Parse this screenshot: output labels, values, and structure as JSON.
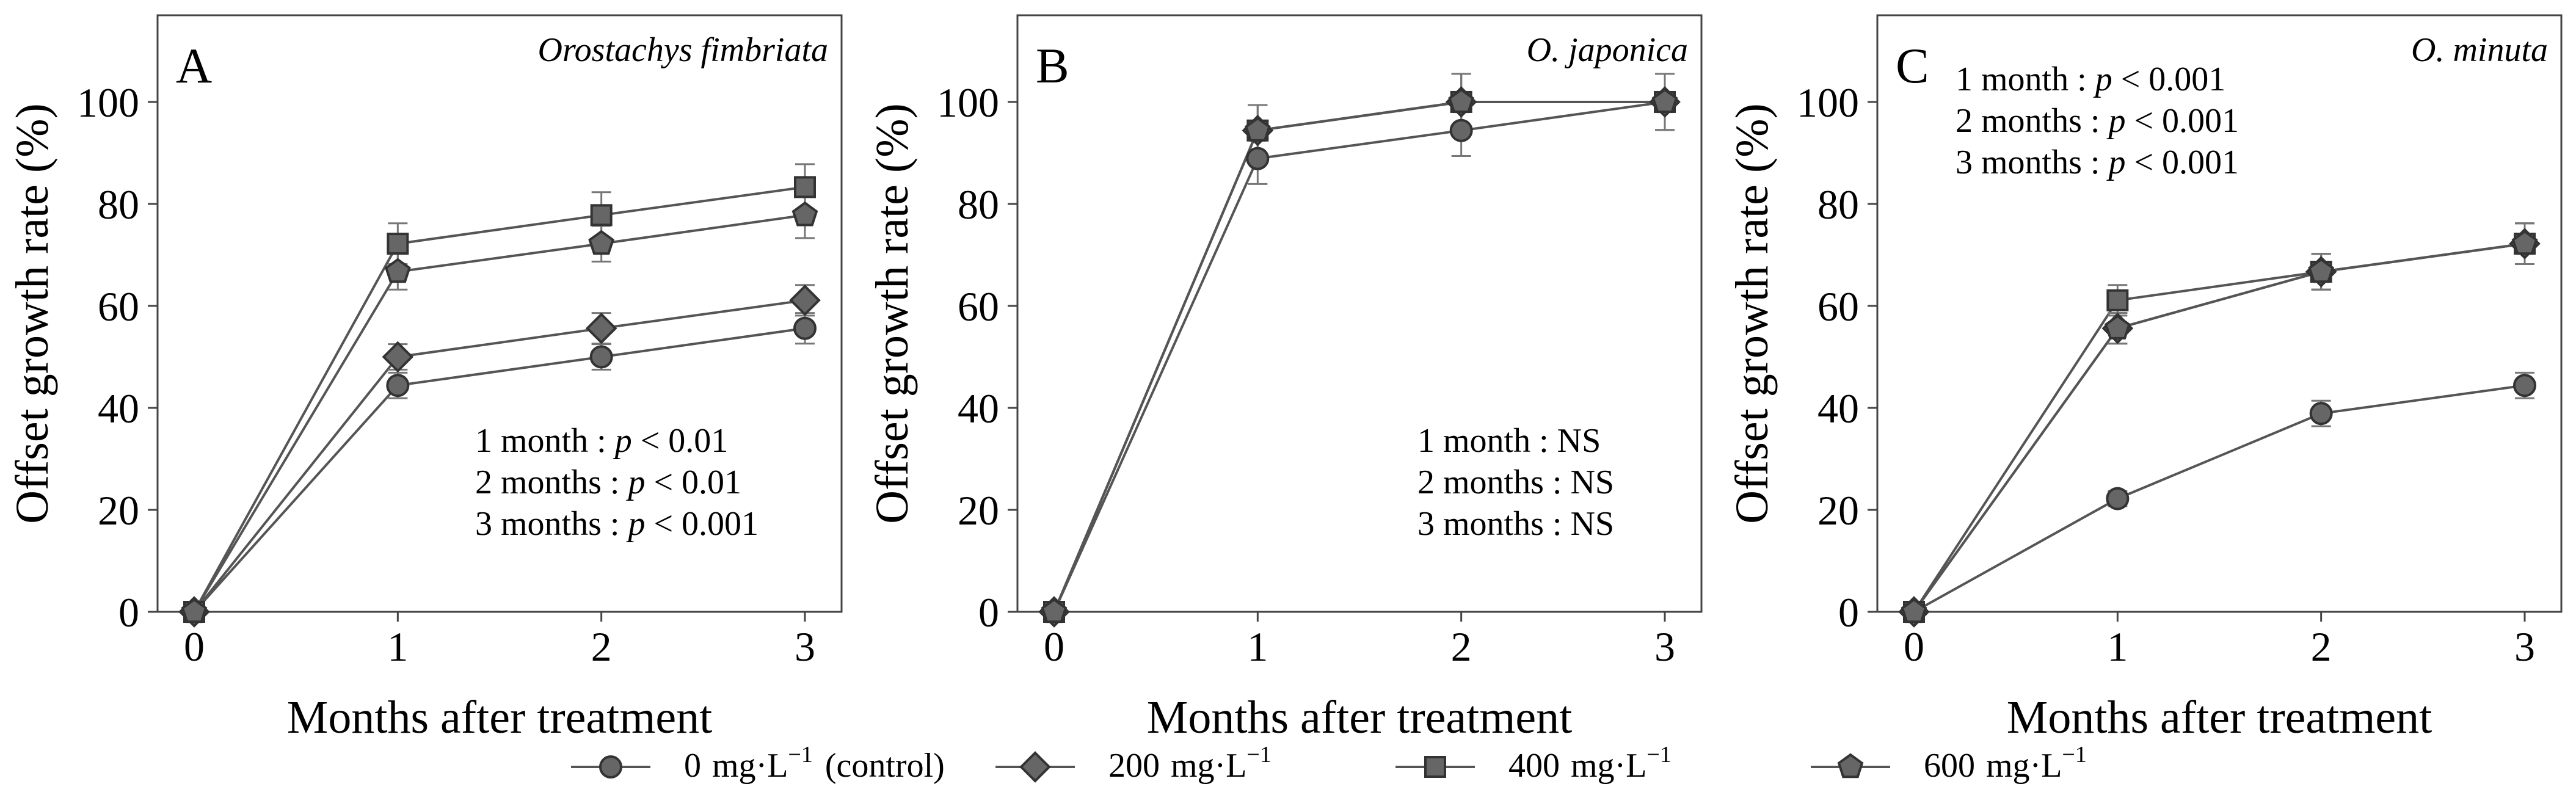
{
  "chart_data": [
    {
      "type": "line",
      "panel": "A",
      "species": "Orostachys fimbriata",
      "x": [
        0,
        1,
        2,
        3
      ],
      "xlabel": "Months after treatment",
      "ylabel": "Offset growth rate (%)",
      "ylim": [
        0,
        117
      ],
      "yticks": [
        0,
        20,
        40,
        60,
        80,
        100
      ],
      "xticks": [
        0,
        1,
        2,
        3
      ],
      "annotations": [
        {
          "prefix": "1 month : ",
          "p": "p",
          "suffix": " < 0.01"
        },
        {
          "prefix": "2 months : ",
          "p": "p",
          "suffix": " < 0.01"
        },
        {
          "prefix": "3 months : ",
          "p": "p",
          "suffix": " < 0.001"
        }
      ],
      "series": [
        {
          "name": "0 mg·L−1 (control)",
          "marker": "circle",
          "values": [
            0,
            44.4,
            50.0,
            55.6
          ],
          "errors": [
            0,
            2.5,
            2.5,
            3.0
          ]
        },
        {
          "name": "200 mg·L−1",
          "marker": "diamond",
          "values": [
            0,
            50.0,
            55.6,
            61.1
          ],
          "errors": [
            0,
            2.5,
            3.0,
            3.0
          ]
        },
        {
          "name": "400 mg·L−1",
          "marker": "square",
          "values": [
            0,
            72.2,
            77.8,
            83.3
          ],
          "errors": [
            0,
            4.0,
            4.5,
            4.5
          ]
        },
        {
          "name": "600 mg·L−1",
          "marker": "pentagon",
          "values": [
            0,
            66.7,
            72.2,
            77.8
          ],
          "errors": [
            0,
            3.5,
            3.5,
            4.5
          ]
        }
      ]
    },
    {
      "type": "line",
      "panel": "B",
      "species": "O. japonica",
      "x": [
        0,
        1,
        2,
        3
      ],
      "xlabel": "Months after treatment",
      "ylabel": "Offset growth rate (%)",
      "ylim": [
        0,
        117
      ],
      "yticks": [
        0,
        20,
        40,
        60,
        80,
        100
      ],
      "xticks": [
        0,
        1,
        2,
        3
      ],
      "annotations": [
        {
          "prefix": "1 month : NS",
          "p": "",
          "suffix": ""
        },
        {
          "prefix": "2 months : NS",
          "p": "",
          "suffix": ""
        },
        {
          "prefix": "3 months : NS",
          "p": "",
          "suffix": ""
        }
      ],
      "series": [
        {
          "name": "0 mg·L−1 (control)",
          "marker": "circle",
          "values": [
            0,
            88.9,
            94.4,
            100.0
          ],
          "errors": [
            0,
            5.0,
            5.0,
            5.5
          ]
        },
        {
          "name": "200 mg·L−1",
          "marker": "diamond",
          "values": [
            0,
            94.4,
            100.0,
            100.0
          ],
          "errors": [
            0,
            5.0,
            5.5,
            5.5
          ]
        },
        {
          "name": "400 mg·L−1",
          "marker": "square",
          "values": [
            0,
            94.4,
            100.0,
            100.0
          ],
          "errors": [
            0,
            5.0,
            5.5,
            5.5
          ]
        },
        {
          "name": "600 mg·L−1",
          "marker": "pentagon",
          "values": [
            0,
            94.4,
            100.0,
            100.0
          ],
          "errors": [
            0,
            5.0,
            5.5,
            5.5
          ]
        }
      ]
    },
    {
      "type": "line",
      "panel": "C",
      "species": "O. minuta",
      "x": [
        0,
        1,
        2,
        3
      ],
      "xlabel": "Months after treatment",
      "ylabel": "Offset growth rate (%)",
      "ylim": [
        0,
        117
      ],
      "yticks": [
        0,
        20,
        40,
        60,
        80,
        100
      ],
      "xticks": [
        0,
        1,
        2,
        3
      ],
      "annotations": [
        {
          "prefix": "1 month : ",
          "p": "p",
          "suffix": " < 0.001"
        },
        {
          "prefix": "2 months : ",
          "p": "p",
          "suffix": " < 0.001"
        },
        {
          "prefix": "3 months : ",
          "p": "p",
          "suffix": " < 0.001"
        }
      ],
      "series": [
        {
          "name": "0 mg·L−1 (control)",
          "marker": "circle",
          "values": [
            0,
            22.2,
            38.9,
            44.4
          ],
          "errors": [
            0,
            1.5,
            2.5,
            2.5
          ]
        },
        {
          "name": "200 mg·L−1",
          "marker": "diamond",
          "values": [
            0,
            55.6,
            66.7,
            72.2
          ],
          "errors": [
            0,
            3.0,
            3.5,
            4.0
          ]
        },
        {
          "name": "400 mg·L−1",
          "marker": "square",
          "values": [
            0,
            61.1,
            66.7,
            72.2
          ],
          "errors": [
            0,
            3.0,
            3.5,
            4.0
          ]
        },
        {
          "name": "600 mg·L−1",
          "marker": "pentagon",
          "values": [
            0,
            55.6,
            66.7,
            72.2
          ],
          "errors": [
            0,
            3.0,
            3.5,
            4.0
          ]
        }
      ]
    }
  ],
  "legend": {
    "placement": "bottom-center",
    "entries": [
      {
        "marker": "circle",
        "value": "0",
        "unit": "mg·L",
        "exp": "−1",
        "extra": "(control)"
      },
      {
        "marker": "diamond",
        "value": "200",
        "unit": "mg·L",
        "exp": "−1",
        "extra": ""
      },
      {
        "marker": "square",
        "value": "400",
        "unit": "mg·L",
        "exp": "−1",
        "extra": ""
      },
      {
        "marker": "pentagon",
        "value": "600",
        "unit": "mg·L",
        "exp": "−1",
        "extra": ""
      }
    ]
  }
}
